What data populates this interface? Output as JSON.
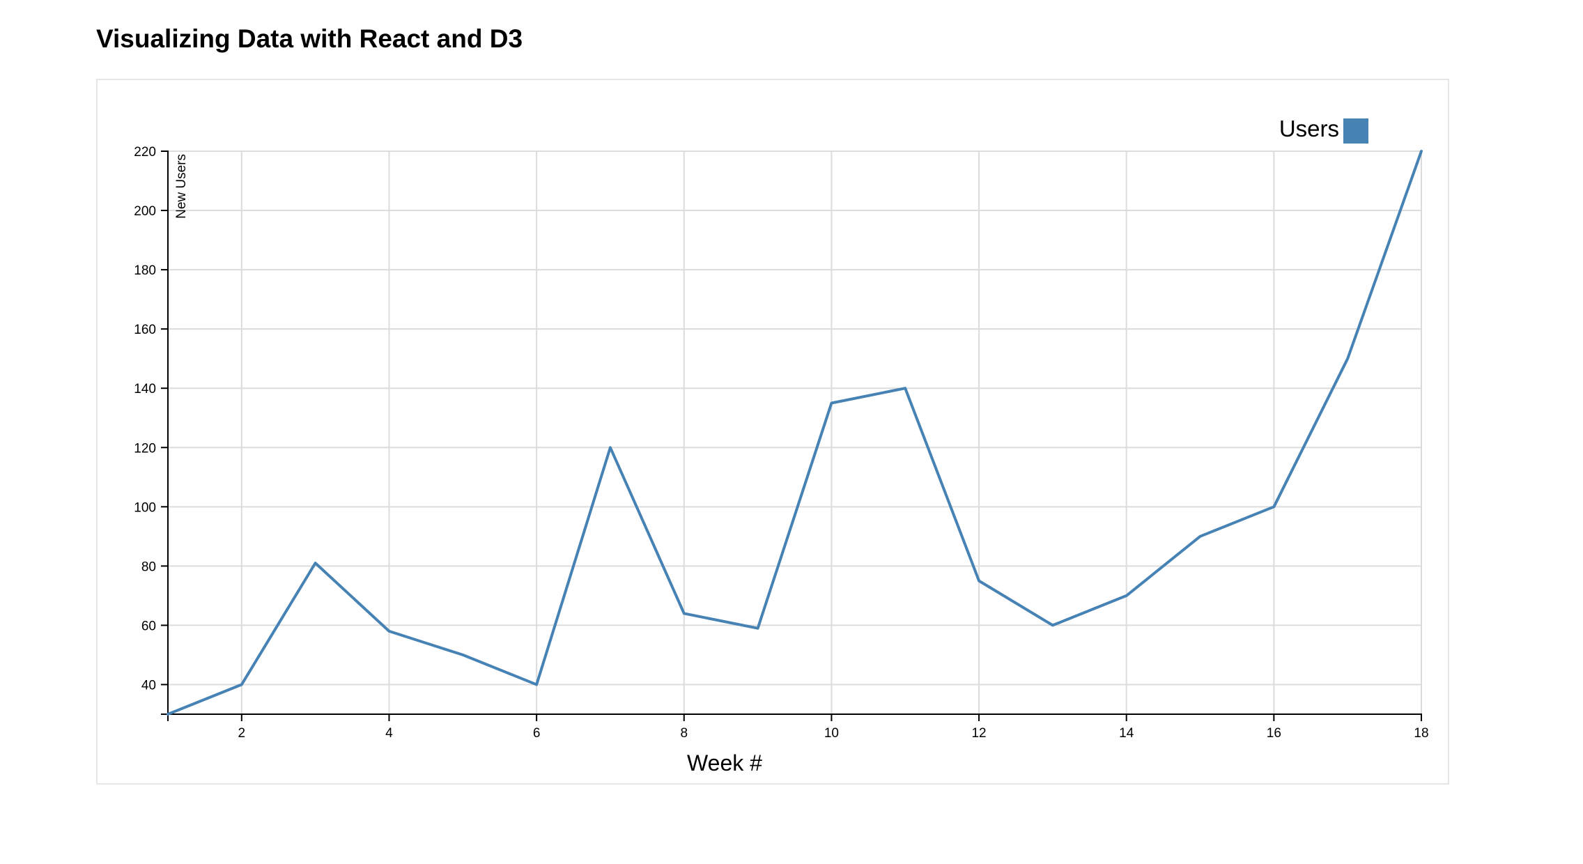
{
  "page": {
    "title": "Visualizing Data with React and D3"
  },
  "colors": {
    "series": "#4682b4",
    "grid": "#dcdcdc",
    "axis": "#000000",
    "card_border": "#e6e6e6"
  },
  "chart_data": {
    "type": "line",
    "title": "",
    "xlabel": "Week #",
    "ylabel": "New Users",
    "xlim": [
      1,
      18
    ],
    "ylim": [
      30,
      220
    ],
    "xticks": [
      2,
      4,
      6,
      8,
      10,
      12,
      14,
      16,
      18
    ],
    "yticks": [
      40,
      60,
      80,
      100,
      120,
      140,
      160,
      180,
      200,
      220
    ],
    "grid": true,
    "legend": {
      "position": "top-right",
      "entries": [
        {
          "label": "Users",
          "color": "#4682b4"
        }
      ]
    },
    "series": [
      {
        "name": "Users",
        "color": "#4682b4",
        "x": [
          1,
          2,
          3,
          4,
          5,
          6,
          7,
          8,
          9,
          10,
          11,
          12,
          13,
          14,
          15,
          16,
          17,
          18
        ],
        "y": [
          30,
          40,
          81,
          58,
          50,
          40,
          120,
          64,
          59,
          135,
          140,
          75,
          60,
          70,
          90,
          100,
          150,
          220
        ]
      }
    ]
  }
}
